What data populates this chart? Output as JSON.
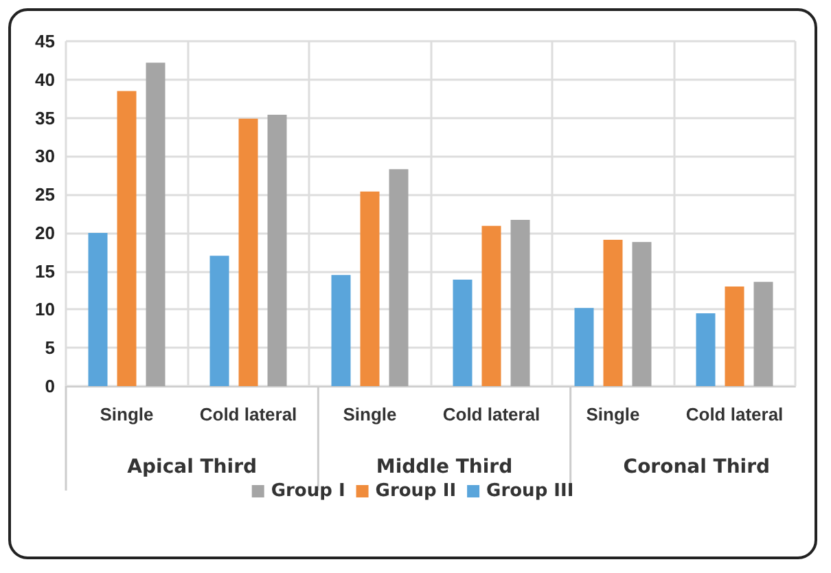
{
  "chart_data": {
    "type": "bar",
    "categories": [
      "Single",
      "Cold lateral",
      "Single",
      "Cold lateral",
      "Single",
      "Cold lateral"
    ],
    "annotations": [
      "Apical Third",
      "Middle Third",
      "Coronal Third"
    ],
    "series": [
      {
        "name": "Group III",
        "color": "#5aa5db",
        "values": [
          20,
          17,
          14.5,
          13.9,
          10.2,
          9.5
        ]
      },
      {
        "name": "Group II",
        "color": "#f08c3c",
        "values": [
          38.5,
          34.9,
          25.4,
          20.9,
          19.1,
          13
        ]
      },
      {
        "name": "Group I",
        "color": "#a5a5a5",
        "values": [
          42.2,
          35.4,
          28.3,
          21.7,
          18.8,
          13.6
        ]
      }
    ],
    "ylim": [
      0,
      45
    ],
    "yticks": [
      0,
      5,
      10,
      15,
      20,
      25,
      30,
      35,
      40,
      45
    ],
    "grid": true,
    "legend": "bottom"
  }
}
